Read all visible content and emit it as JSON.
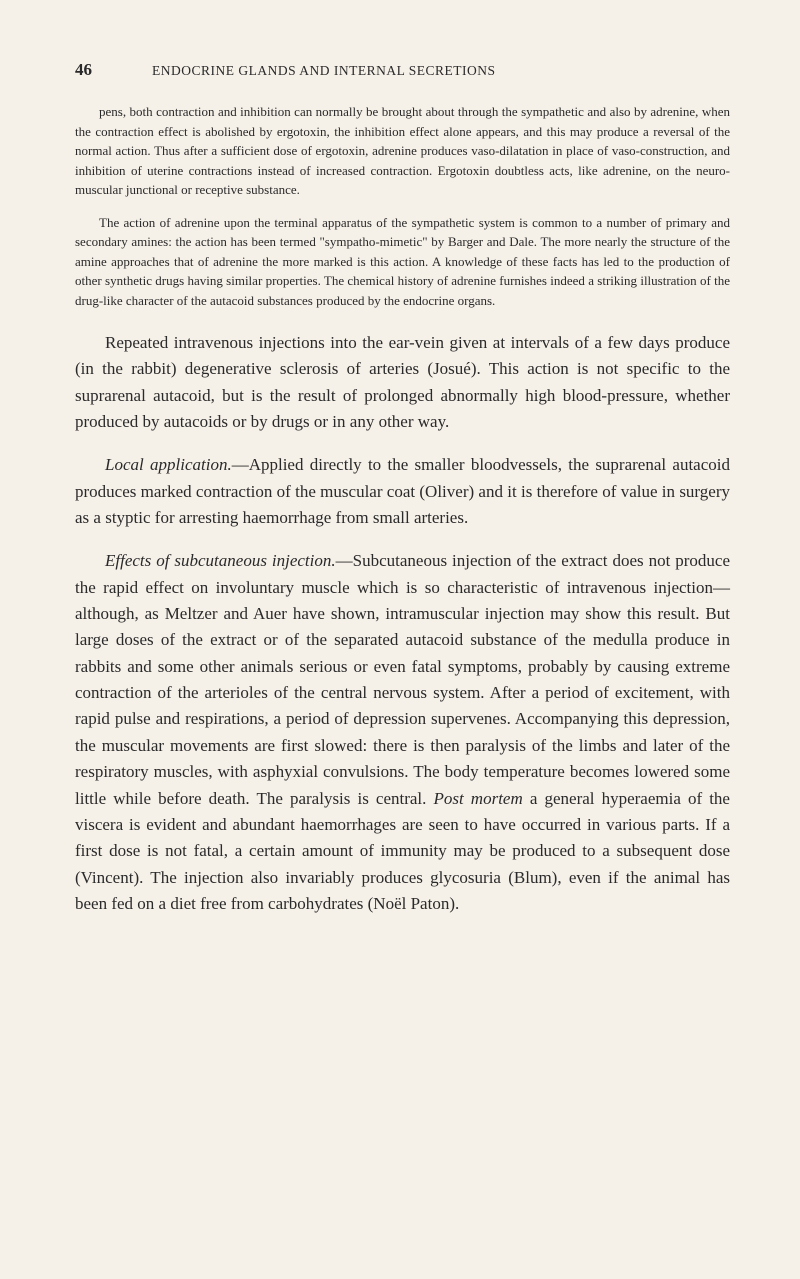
{
  "page_number": "46",
  "header": "ENDOCRINE GLANDS AND INTERNAL SECRETIONS",
  "para1": "pens, both contraction and inhibition can normally be brought about through the sympathetic and also by adrenine, when the contraction effect is abolished by ergotoxin, the inhibition effect alone appears, and this may produce a reversal of the normal action. Thus after a sufficient dose of ergotoxin, adrenine produces vaso-dilatation in place of vaso-construction, and inhibition of uterine contractions instead of increased contraction. Ergotoxin doubtless acts, like adrenine, on the neuro-muscular junctional or receptive substance.",
  "para2": "The action of adrenine upon the terminal apparatus of the sympathetic system is common to a number of primary and secondary amines: the action has been termed \"sympatho-mimetic\" by Barger and Dale. The more nearly the structure of the amine approaches that of adrenine the more marked is this action. A knowledge of these facts has led to the production of other synthetic drugs having similar properties. The chemical history of adrenine furnishes indeed a striking illustration of the drug-like character of the autacoid substances produced by the endocrine organs.",
  "para3": "Repeated intravenous injections into the ear-vein given at intervals of a few days produce (in the rabbit) degenerative sclerosis of arteries (Josué). This action is not specific to the suprarenal autacoid, but is the result of prolonged abnormally high blood-pressure, whether produced by autacoids or by drugs or in any other way.",
  "para4_label": "Local application.",
  "para4_text": "—Applied directly to the smaller bloodvessels, the suprarenal autacoid produces marked contraction of the muscular coat (Oliver) and it is therefore of value in surgery as a styptic for arresting haemorrhage from small arteries.",
  "para5_label": "Effects of subcutaneous injection.",
  "para5_text_a": "—Subcutaneous injection of the extract does not produce the rapid effect on involuntary muscle which is so characteristic of intravenous injection—although, as Meltzer and Auer have shown, intramuscular injection may show this result. But large doses of the extract or of the separated autacoid substance of the medulla produce in rabbits and some other animals serious or even fatal symptoms, probably by causing extreme contraction of the arterioles of the central nervous system. After a period of excitement, with rapid pulse and respirations, a period of depression supervenes. Accompanying this depression, the muscular movements are first slowed: there is then paralysis of the limbs and later of the respiratory muscles, with asphyxial convulsions. The body temperature becomes lowered some little while before death. The paralysis is central. ",
  "para5_em": "Post mortem",
  "para5_text_b": " a general hyperaemia of the viscera is evident and abundant haemorrhages are seen to have occurred in various parts. If a first dose is not fatal, a certain amount of immunity may be produced to a subsequent dose (Vincent). The injection also invariably produces glycosuria (Blum), even if the animal has been fed on a diet free from carbohydrates (Noël Paton)."
}
